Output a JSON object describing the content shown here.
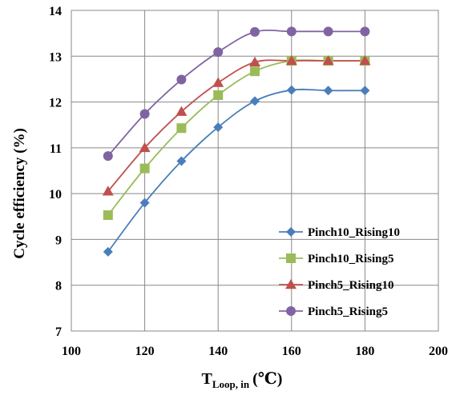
{
  "chart_data": {
    "type": "line",
    "xlabel_main": "T",
    "xlabel_sub": "Loop, in",
    "xlabel_unit": "(℃)",
    "ylabel": "Cycle efficiency  (%)",
    "xlim": [
      100,
      200
    ],
    "ylim": [
      7,
      14
    ],
    "x_ticks": [
      100,
      120,
      140,
      160,
      180,
      200
    ],
    "y_ticks": [
      7,
      8,
      9,
      10,
      11,
      12,
      13,
      14
    ],
    "grid": true,
    "legend_position": "bottom-right",
    "x": [
      110,
      120,
      130,
      140,
      150,
      160,
      170,
      180
    ],
    "series": [
      {
        "name": "Pinch10_Rising10",
        "color": "#4A7EBB",
        "marker": "diamond",
        "values": [
          8.73,
          9.8,
          10.71,
          11.45,
          12.02,
          12.26,
          12.25,
          12.25
        ]
      },
      {
        "name": "Pinch10_Rising5",
        "color": "#9BBB59",
        "marker": "square",
        "values": [
          9.53,
          10.55,
          11.43,
          12.15,
          12.67,
          12.9,
          12.9,
          12.9
        ]
      },
      {
        "name": "Pinch5_Rising10",
        "color": "#C0504D",
        "marker": "triangle",
        "values": [
          10.05,
          11.0,
          11.79,
          12.42,
          12.87,
          12.9,
          12.9,
          12.9
        ]
      },
      {
        "name": "Pinch5_Rising5",
        "color": "#8064A2",
        "marker": "circle",
        "values": [
          10.82,
          11.74,
          12.49,
          13.09,
          13.53,
          13.54,
          13.54,
          13.54
        ]
      }
    ]
  }
}
